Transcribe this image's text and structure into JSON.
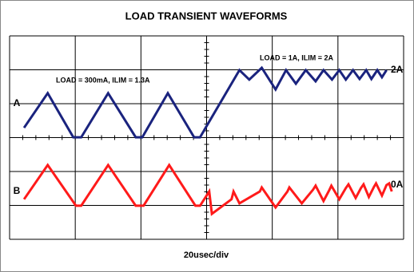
{
  "chart_data": {
    "type": "line",
    "title": "LOAD TRANSIENT WAVEFORMS",
    "xlabel": "20usec/div",
    "xlim": [
      0,
      6
    ],
    "ylim": [
      0,
      6
    ],
    "xticks": [
      0,
      1,
      2,
      3,
      4,
      5,
      6
    ],
    "yticks": [
      0,
      1,
      2,
      3,
      4,
      5,
      6
    ],
    "grid": true,
    "series": [
      {
        "name": "A",
        "color": "#1a237e",
        "x": [
          0.22,
          0.58,
          0.97,
          1.09,
          1.5,
          1.92,
          2.02,
          2.41,
          2.81,
          2.9,
          3.5,
          3.65,
          3.84,
          4.05,
          4.21,
          4.36,
          4.51,
          4.66,
          4.78,
          4.91,
          5.02,
          5.12,
          5.23,
          5.33,
          5.43,
          5.51,
          5.6,
          5.67,
          5.74
        ],
        "values": [
          3.29,
          4.31,
          3.01,
          3.01,
          4.31,
          3.01,
          3.01,
          4.31,
          3.01,
          3.01,
          4.99,
          4.71,
          5.06,
          4.42,
          4.99,
          4.59,
          4.99,
          4.66,
          4.99,
          4.71,
          4.99,
          4.71,
          4.99,
          4.73,
          4.99,
          4.73,
          4.99,
          4.78,
          4.99
        ]
      },
      {
        "name": "B",
        "color": "#ff1a1a",
        "x": [
          0.22,
          0.58,
          1.01,
          1.09,
          1.5,
          1.92,
          2.04,
          2.43,
          2.83,
          2.9,
          3.04,
          3.08,
          3.38,
          3.41,
          3.5,
          3.81,
          3.84,
          4.05,
          4.23,
          4.26,
          4.45,
          4.62,
          4.66,
          4.78,
          4.87,
          4.9,
          5.02,
          5.12,
          5.16,
          5.27,
          5.35,
          5.39,
          5.47,
          5.55,
          5.58,
          5.67,
          5.74,
          5.78,
          5.82
        ],
        "values": [
          1.18,
          2.19,
          0.99,
          0.99,
          2.19,
          0.99,
          0.99,
          2.19,
          0.99,
          0.99,
          1.41,
          0.75,
          1.18,
          1.41,
          1.06,
          1.41,
          1.53,
          0.94,
          1.41,
          1.53,
          1.06,
          1.46,
          1.58,
          1.13,
          1.46,
          1.58,
          1.18,
          1.51,
          1.62,
          1.22,
          1.51,
          1.62,
          1.25,
          1.55,
          1.65,
          1.29,
          1.6,
          1.65,
          1.41
        ]
      }
    ],
    "annotations": [
      "LOAD = 300mA, ILIM = 1.3A",
      "LOAD = 1A, ILIM = 2A",
      "2A",
      "0A"
    ]
  }
}
